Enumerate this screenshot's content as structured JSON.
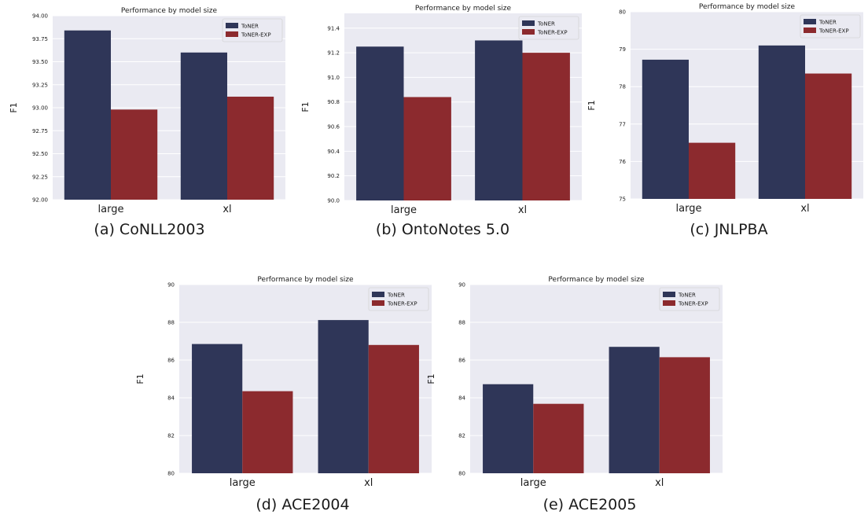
{
  "colors": {
    "toner": "#2f3658",
    "toner_exp": "#8c2a2e",
    "plot_bg": "#eaeaf2",
    "grid": "#ffffff",
    "text": "#1a1a1a"
  },
  "chart_data": [
    {
      "type": "bar",
      "title": "Performance by model size",
      "caption": "(a) CoNLL2003",
      "ylabel": "F1",
      "categories": [
        "large",
        "xl"
      ],
      "series": [
        {
          "name": "ToNER",
          "values": [
            93.84,
            93.6
          ]
        },
        {
          "name": "ToNER-EXP",
          "values": [
            92.98,
            93.12
          ]
        }
      ],
      "ylim": [
        92.0,
        94.0
      ],
      "yticks": [
        92.0,
        92.25,
        92.5,
        92.75,
        93.0,
        93.25,
        93.5,
        93.75,
        94.0
      ],
      "ytick_labels": [
        "92.00",
        "92.25",
        "92.50",
        "92.75",
        "93.00",
        "93.25",
        "93.50",
        "93.75",
        "94.00"
      ],
      "legend": "top-right",
      "grid": true
    },
    {
      "type": "bar",
      "title": "Performance by model size",
      "caption": "(b) OntoNotes 5.0",
      "ylabel": "F1",
      "categories": [
        "large",
        "xl"
      ],
      "series": [
        {
          "name": "ToNER",
          "values": [
            91.25,
            91.3
          ]
        },
        {
          "name": "ToNER-EXP",
          "values": [
            90.84,
            91.2
          ]
        }
      ],
      "ylim": [
        90.0,
        91.52
      ],
      "yticks": [
        90.0,
        90.2,
        90.4,
        90.6,
        90.8,
        91.0,
        91.2,
        91.4
      ],
      "ytick_labels": [
        "90.0",
        "90.2",
        "90.4",
        "90.6",
        "90.8",
        "91.0",
        "91.2",
        "91.4"
      ],
      "legend": "top-right",
      "grid": true
    },
    {
      "type": "bar",
      "title": "Performance by model size",
      "caption": "(c) JNLPBA",
      "ylabel": "F1",
      "categories": [
        "large",
        "xl"
      ],
      "series": [
        {
          "name": "ToNER",
          "values": [
            78.72,
            79.1
          ]
        },
        {
          "name": "ToNER-EXP",
          "values": [
            76.5,
            78.35
          ]
        }
      ],
      "ylim": [
        75,
        80
      ],
      "yticks": [
        75,
        76,
        77,
        78,
        79,
        80
      ],
      "ytick_labels": [
        "75",
        "76",
        "77",
        "78",
        "79",
        "80"
      ],
      "legend": "top-right",
      "grid": true
    },
    {
      "type": "bar",
      "title": "Performance by model size",
      "caption": "(d) ACE2004",
      "ylabel": "F1",
      "categories": [
        "large",
        "xl"
      ],
      "series": [
        {
          "name": "ToNER",
          "values": [
            86.85,
            88.12
          ]
        },
        {
          "name": "ToNER-EXP",
          "values": [
            84.35,
            86.8
          ]
        }
      ],
      "ylim": [
        80,
        90
      ],
      "yticks": [
        80,
        82,
        84,
        86,
        88,
        90
      ],
      "ytick_labels": [
        "80",
        "82",
        "84",
        "86",
        "88",
        "90"
      ],
      "legend": "top-right",
      "grid": true
    },
    {
      "type": "bar",
      "title": "Performance by model size",
      "caption": "(e) ACE2005",
      "ylabel": "F1",
      "categories": [
        "large",
        "xl"
      ],
      "series": [
        {
          "name": "ToNER",
          "values": [
            84.72,
            86.7
          ]
        },
        {
          "name": "ToNER-EXP",
          "values": [
            83.68,
            86.15
          ]
        }
      ],
      "ylim": [
        80,
        90
      ],
      "yticks": [
        80,
        82,
        84,
        86,
        88,
        90
      ],
      "ytick_labels": [
        "80",
        "82",
        "84",
        "86",
        "88",
        "90"
      ],
      "legend": "top-right",
      "grid": true
    }
  ]
}
